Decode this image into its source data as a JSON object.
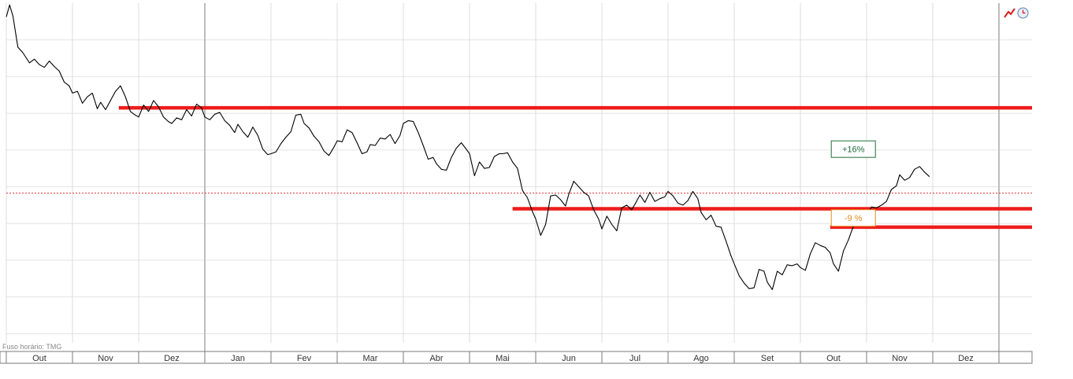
{
  "chart_data": {
    "type": "line",
    "x_axis_labels": [
      "Out",
      "Nov",
      "Dez",
      "Jan",
      "Fev",
      "Mar",
      "Abr",
      "Mai",
      "Jun",
      "Jul",
      "Ago",
      "Set",
      "Out",
      "Nov",
      "Dez"
    ],
    "y_range_pct": [
      -21,
      16
    ],
    "grid": true,
    "timezone_label": "Fuso horário: TMG",
    "series": [
      {
        "color": "#000000",
        "points": [
          [
            0.0,
            14.5
          ],
          [
            0.1,
            15.8
          ],
          [
            0.2,
            14.6
          ],
          [
            0.35,
            11.2
          ],
          [
            0.5,
            10.6
          ],
          [
            0.7,
            9.5
          ],
          [
            0.85,
            9.9
          ],
          [
            1.0,
            9.3
          ],
          [
            1.15,
            9.0
          ],
          [
            1.3,
            9.7
          ],
          [
            1.45,
            9.1
          ],
          [
            1.6,
            8.6
          ],
          [
            1.75,
            7.4
          ],
          [
            1.9,
            7.0
          ],
          [
            2.0,
            6.2
          ],
          [
            2.15,
            6.4
          ],
          [
            2.3,
            5.1
          ],
          [
            2.45,
            5.8
          ],
          [
            2.6,
            6.2
          ],
          [
            2.75,
            4.5
          ],
          [
            2.85,
            5.2
          ],
          [
            3.0,
            4.4
          ],
          [
            3.15,
            5.4
          ],
          [
            3.3,
            6.4
          ],
          [
            3.45,
            7.0
          ],
          [
            3.6,
            5.8
          ],
          [
            3.75,
            4.2
          ],
          [
            3.9,
            3.8
          ],
          [
            4.0,
            3.6
          ],
          [
            4.15,
            4.9
          ],
          [
            4.3,
            4.2
          ],
          [
            4.45,
            5.4
          ],
          [
            4.6,
            4.7
          ],
          [
            4.75,
            3.6
          ],
          [
            4.9,
            3.1
          ],
          [
            5.0,
            2.9
          ],
          [
            5.15,
            3.5
          ],
          [
            5.3,
            3.3
          ],
          [
            5.45,
            4.4
          ],
          [
            5.6,
            3.7
          ],
          [
            5.75,
            5.0
          ],
          [
            5.9,
            4.6
          ],
          [
            6.0,
            3.6
          ],
          [
            6.15,
            3.3
          ],
          [
            6.3,
            3.9
          ],
          [
            6.45,
            4.1
          ],
          [
            6.6,
            3.2
          ],
          [
            6.75,
            2.7
          ],
          [
            6.9,
            1.9
          ],
          [
            7.0,
            2.8
          ],
          [
            7.15,
            2.0
          ],
          [
            7.3,
            1.4
          ],
          [
            7.45,
            2.5
          ],
          [
            7.6,
            1.6
          ],
          [
            7.75,
            0.1
          ],
          [
            7.9,
            -0.5
          ],
          [
            8.0,
            -0.4
          ],
          [
            8.15,
            -0.2
          ],
          [
            8.3,
            0.7
          ],
          [
            8.45,
            1.4
          ],
          [
            8.6,
            2.0
          ],
          [
            8.75,
            3.8
          ],
          [
            8.9,
            3.9
          ],
          [
            9.0,
            2.9
          ],
          [
            9.15,
            2.4
          ],
          [
            9.3,
            1.5
          ],
          [
            9.45,
            0.9
          ],
          [
            9.6,
            -0.1
          ],
          [
            9.75,
            -0.6
          ],
          [
            9.9,
            0.3
          ],
          [
            10.0,
            1.0
          ],
          [
            10.15,
            0.9
          ],
          [
            10.3,
            2.2
          ],
          [
            10.45,
            1.9
          ],
          [
            10.6,
            0.8
          ],
          [
            10.75,
            -0.4
          ],
          [
            10.9,
            -0.2
          ],
          [
            11.0,
            0.6
          ],
          [
            11.15,
            0.5
          ],
          [
            11.3,
            1.3
          ],
          [
            11.45,
            1.2
          ],
          [
            11.6,
            1.7
          ],
          [
            11.75,
            0.7
          ],
          [
            11.9,
            1.6
          ],
          [
            12.0,
            2.9
          ],
          [
            12.15,
            3.2
          ],
          [
            12.3,
            3.1
          ],
          [
            12.45,
            1.9
          ],
          [
            12.6,
            0.5
          ],
          [
            12.75,
            -1.0
          ],
          [
            12.9,
            -0.8
          ],
          [
            13.0,
            -1.5
          ],
          [
            13.15,
            -2.1
          ],
          [
            13.3,
            -2.2
          ],
          [
            13.45,
            -0.8
          ],
          [
            13.6,
            0.2
          ],
          [
            13.75,
            0.8
          ],
          [
            13.9,
            0.1
          ],
          [
            14.0,
            -0.4
          ],
          [
            14.15,
            -2.8
          ],
          [
            14.3,
            -1.3
          ],
          [
            14.45,
            -2.0
          ],
          [
            14.6,
            -1.9
          ],
          [
            14.75,
            -0.7
          ],
          [
            14.9,
            -0.4
          ],
          [
            15.0,
            -0.4
          ],
          [
            15.15,
            -0.3
          ],
          [
            15.3,
            -1.3
          ],
          [
            15.45,
            -2.0
          ],
          [
            15.6,
            -4.4
          ],
          [
            15.75,
            -5.2
          ],
          [
            15.9,
            -6.7
          ],
          [
            16.0,
            -7.5
          ],
          [
            16.15,
            -9.3
          ],
          [
            16.3,
            -8.1
          ],
          [
            16.45,
            -5.0
          ],
          [
            16.6,
            -4.9
          ],
          [
            16.75,
            -5.4
          ],
          [
            16.9,
            -6.1
          ],
          [
            17.0,
            -4.8
          ],
          [
            17.15,
            -3.4
          ],
          [
            17.3,
            -4.0
          ],
          [
            17.45,
            -4.6
          ],
          [
            17.6,
            -5.0
          ],
          [
            17.75,
            -6.5
          ],
          [
            17.9,
            -7.5
          ],
          [
            18.0,
            -8.6
          ],
          [
            18.15,
            -7.2
          ],
          [
            18.3,
            -8.1
          ],
          [
            18.45,
            -8.8
          ],
          [
            18.6,
            -6.3
          ],
          [
            18.75,
            -6.0
          ],
          [
            18.9,
            -6.5
          ],
          [
            19.0,
            -5.9
          ],
          [
            19.15,
            -4.9
          ],
          [
            19.3,
            -5.7
          ],
          [
            19.45,
            -4.6
          ],
          [
            19.6,
            -5.6
          ],
          [
            19.75,
            -5.3
          ],
          [
            19.9,
            -5.1
          ],
          [
            20.0,
            -4.5
          ],
          [
            20.15,
            -5.0
          ],
          [
            20.3,
            -5.8
          ],
          [
            20.45,
            -6.0
          ],
          [
            20.6,
            -5.5
          ],
          [
            20.75,
            -4.5
          ],
          [
            20.9,
            -5.3
          ],
          [
            21.0,
            -6.8
          ],
          [
            21.15,
            -7.6
          ],
          [
            21.3,
            -7.1
          ],
          [
            21.45,
            -8.3
          ],
          [
            21.6,
            -8.4
          ],
          [
            21.75,
            -9.9
          ],
          [
            21.9,
            -11.5
          ],
          [
            22.0,
            -12.4
          ],
          [
            22.15,
            -13.7
          ],
          [
            22.3,
            -14.5
          ],
          [
            22.45,
            -15.1
          ],
          [
            22.6,
            -15.0
          ],
          [
            22.75,
            -13.0
          ],
          [
            22.9,
            -13.2
          ],
          [
            23.0,
            -14.4
          ],
          [
            23.15,
            -15.2
          ],
          [
            23.3,
            -13.2
          ],
          [
            23.45,
            -13.6
          ],
          [
            23.6,
            -12.5
          ],
          [
            23.75,
            -12.6
          ],
          [
            23.9,
            -12.4
          ],
          [
            24.0,
            -12.8
          ],
          [
            24.15,
            -13.1
          ],
          [
            24.3,
            -11.3
          ],
          [
            24.45,
            -10.1
          ],
          [
            24.6,
            -10.4
          ],
          [
            24.75,
            -10.6
          ],
          [
            24.9,
            -11.2
          ],
          [
            25.0,
            -12.4
          ],
          [
            25.15,
            -13.2
          ],
          [
            25.3,
            -11.0
          ],
          [
            25.45,
            -9.8
          ],
          [
            25.6,
            -8.3
          ],
          [
            25.75,
            -7.3
          ],
          [
            25.9,
            -6.9
          ],
          [
            26.0,
            -7.1
          ],
          [
            26.15,
            -6.2
          ],
          [
            26.3,
            -6.3
          ],
          [
            26.45,
            -6.0
          ],
          [
            26.6,
            -5.6
          ],
          [
            26.75,
            -4.3
          ],
          [
            26.9,
            -3.9
          ],
          [
            27.0,
            -2.7
          ],
          [
            27.15,
            -3.3
          ],
          [
            27.3,
            -3.0
          ],
          [
            27.45,
            -2.1
          ],
          [
            27.6,
            -1.8
          ],
          [
            27.75,
            -2.4
          ],
          [
            27.9,
            -2.9
          ]
        ]
      }
    ],
    "reference_lines": [
      {
        "kind": "support-resistance",
        "color": "#ee1c1c",
        "y": 4.6,
        "x_start": 3.4,
        "x_end": 31
      },
      {
        "kind": "support-resistance",
        "color": "#ee1c1c",
        "y": -6.4,
        "x_start": 15.3,
        "x_end": 31
      },
      {
        "kind": "support-resistance",
        "color": "#ee1c1c",
        "y": -8.4,
        "x_start": 24.9,
        "x_end": 31
      }
    ],
    "current_level_line": {
      "color": "#e03030",
      "y": -4.7
    },
    "annotations": [
      {
        "text": "+16%",
        "color": "#1f6b3b",
        "x": 25.6,
        "y": 0.1
      },
      {
        "text": "-9 %",
        "color": "#e58a1a",
        "x": 25.6,
        "y": -7.4
      }
    ]
  },
  "toolbar": {
    "draw_tool_icon": "red-pencil-trend-icon",
    "history_icon": "clock-icon"
  }
}
